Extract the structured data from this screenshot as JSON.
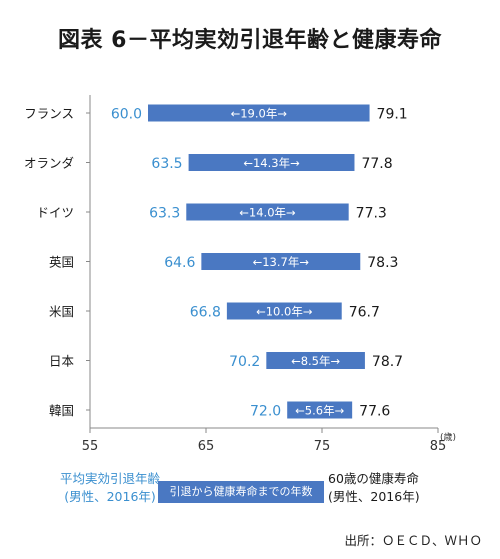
{
  "title": "図表 6－平均実効引退年齢と健康寿命",
  "legend": {
    "retire_line1": "平均実効引退年齢",
    "retire_line2": "(男性、2016年)",
    "gap_label": "引退から健康寿命までの年数",
    "health_line1": "60歳の健康寿命",
    "health_line2": "(男性、2016年)"
  },
  "source": "出所：ＯＥＣＤ、ＷＨＯ",
  "chart_data": {
    "type": "bar",
    "subtype": "floating-range",
    "categories": [
      "フランス",
      "オランダ",
      "ドイツ",
      "英国",
      "米国",
      "日本",
      "韓国"
    ],
    "series": [
      {
        "name": "平均実効引退年齢(男性、2016年)",
        "values": [
          60.0,
          63.5,
          63.3,
          64.6,
          66.8,
          70.2,
          72.0
        ],
        "labels": [
          "60.0",
          "63.5",
          "63.3",
          "64.6",
          "66.8",
          "70.2",
          "72.0"
        ]
      },
      {
        "name": "60歳の健康寿命(男性、2016年)",
        "values": [
          79.1,
          77.8,
          77.3,
          78.3,
          76.7,
          78.7,
          77.6
        ],
        "labels": [
          "79.1",
          "77.8",
          "77.3",
          "78.3",
          "76.7",
          "78.7",
          "77.6"
        ]
      }
    ],
    "gap_labels": [
      "←19.0年→",
      "←14.3年→",
      "←14.0年→",
      "←13.7年→",
      "←10.0年→",
      "←8.5年→",
      "←5.6年→"
    ],
    "x_ticks": [
      "55",
      "65",
      "75",
      "85"
    ],
    "x_unit": "(歳)",
    "xlim": [
      55,
      85
    ],
    "grid": false,
    "colors": {
      "bar": "#4a78c2",
      "retire_text": "#3a8fcf",
      "health_text": "#1a1a1a",
      "bar_text": "#ffffff"
    }
  }
}
